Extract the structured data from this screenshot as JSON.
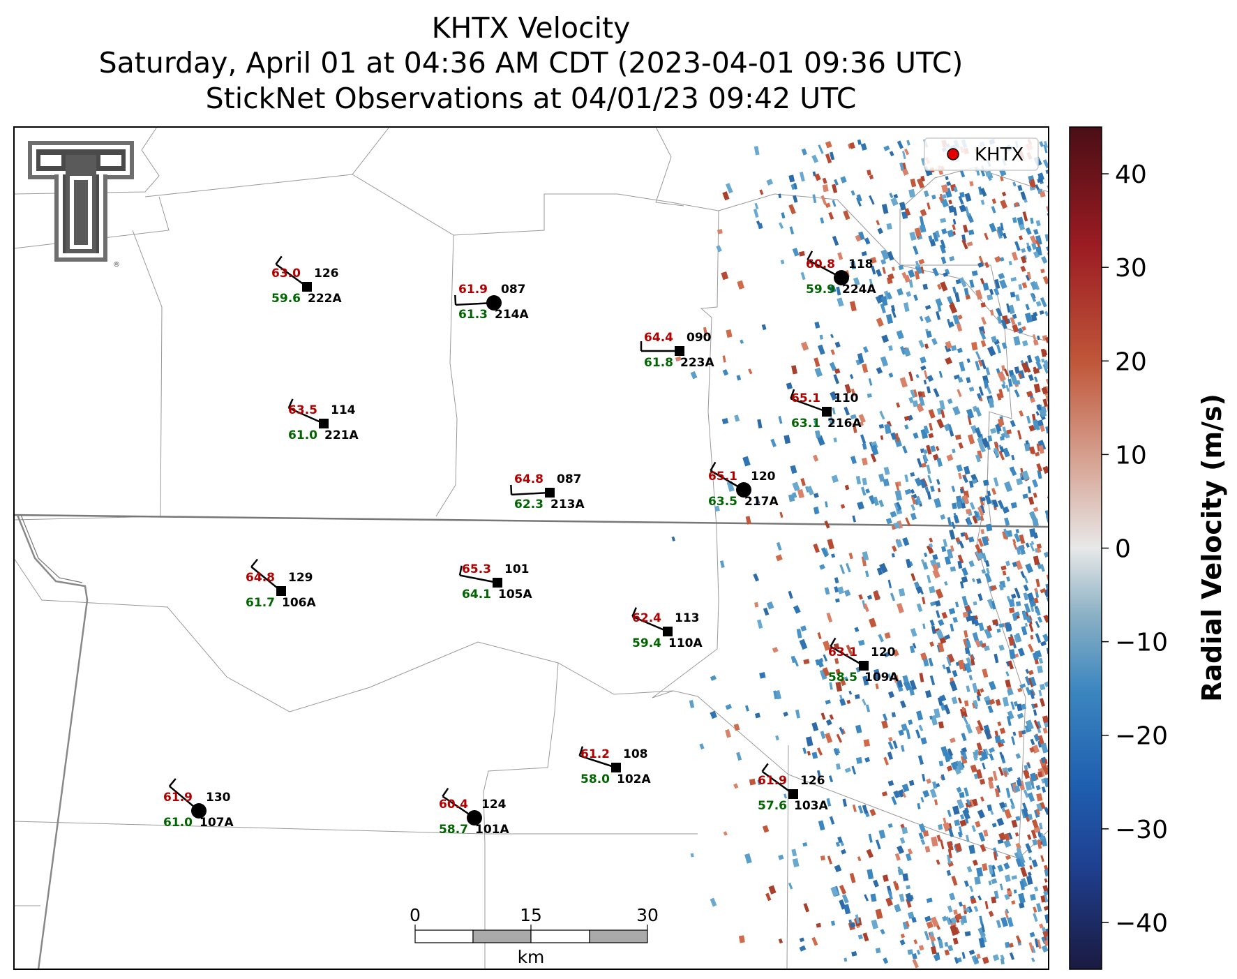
{
  "title": {
    "line1": "KHTX Velocity",
    "line2": "Saturday, April 01 at 04:36 AM CDT (2023-04-01 09:36 UTC)",
    "line3": "StickNet Observations at 04/01/23 09:42 UTC"
  },
  "legend": {
    "label": "KHTX",
    "marker_color": "#e00000"
  },
  "colorbar": {
    "label": "Radial Velocity (m/s)",
    "ticks": [
      "40",
      "30",
      "20",
      "10",
      "0",
      "−10",
      "−20",
      "−30",
      "−40"
    ],
    "range": [
      -45,
      45
    ],
    "colors": [
      "#1a1a40",
      "#1f3f8f",
      "#1f5fb0",
      "#3b86bf",
      "#8ab0c4",
      "#e8e8e8",
      "#d7a595",
      "#c0573a",
      "#9b1b22",
      "#4a0e16"
    ]
  },
  "scalebar": {
    "ticks": [
      "0",
      "15",
      "30"
    ],
    "unit": "km"
  },
  "logo": {
    "name": "Texas Tech Double T",
    "trademark": "®"
  },
  "stations": [
    {
      "id": "222A",
      "temp": "63.0",
      "dew": "59.6",
      "dir": "126",
      "marker": "square"
    },
    {
      "id": "214A",
      "temp": "61.9",
      "dew": "61.3",
      "dir": "087",
      "marker": "circle"
    },
    {
      "id": "223A",
      "temp": "64.4",
      "dew": "61.8",
      "dir": "090",
      "marker": "square"
    },
    {
      "id": "224A",
      "temp": "60.8",
      "dew": "59.9",
      "dir": "118",
      "marker": "circle"
    },
    {
      "id": "221A",
      "temp": "63.5",
      "dew": "61.0",
      "dir": "114",
      "marker": "square"
    },
    {
      "id": "216A",
      "temp": "65.1",
      "dew": "63.1",
      "dir": "110",
      "marker": "square"
    },
    {
      "id": "213A",
      "temp": "64.8",
      "dew": "62.3",
      "dir": "087",
      "marker": "square"
    },
    {
      "id": "217A",
      "temp": "65.1",
      "dew": "63.5",
      "dir": "120",
      "marker": "circle"
    },
    {
      "id": "106A",
      "temp": "64.8",
      "dew": "61.7",
      "dir": "129",
      "marker": "square"
    },
    {
      "id": "105A",
      "temp": "65.3",
      "dew": "64.1",
      "dir": "101",
      "marker": "square"
    },
    {
      "id": "110A",
      "temp": "62.4",
      "dew": "59.4",
      "dir": "113",
      "marker": "square"
    },
    {
      "id": "109A",
      "temp": "63.1",
      "dew": "58.5",
      "dir": "120",
      "marker": "square"
    },
    {
      "id": "102A",
      "temp": "61.2",
      "dew": "58.0",
      "dir": "108",
      "marker": "square"
    },
    {
      "id": "107A",
      "temp": "61.9",
      "dew": "61.0",
      "dir": "130",
      "marker": "circle"
    },
    {
      "id": "101A",
      "temp": "60.4",
      "dew": "58.7",
      "dir": "124",
      "marker": "circle"
    },
    {
      "id": "103A",
      "temp": "61.9",
      "dew": "57.6",
      "dir": "126",
      "marker": "square"
    }
  ]
}
